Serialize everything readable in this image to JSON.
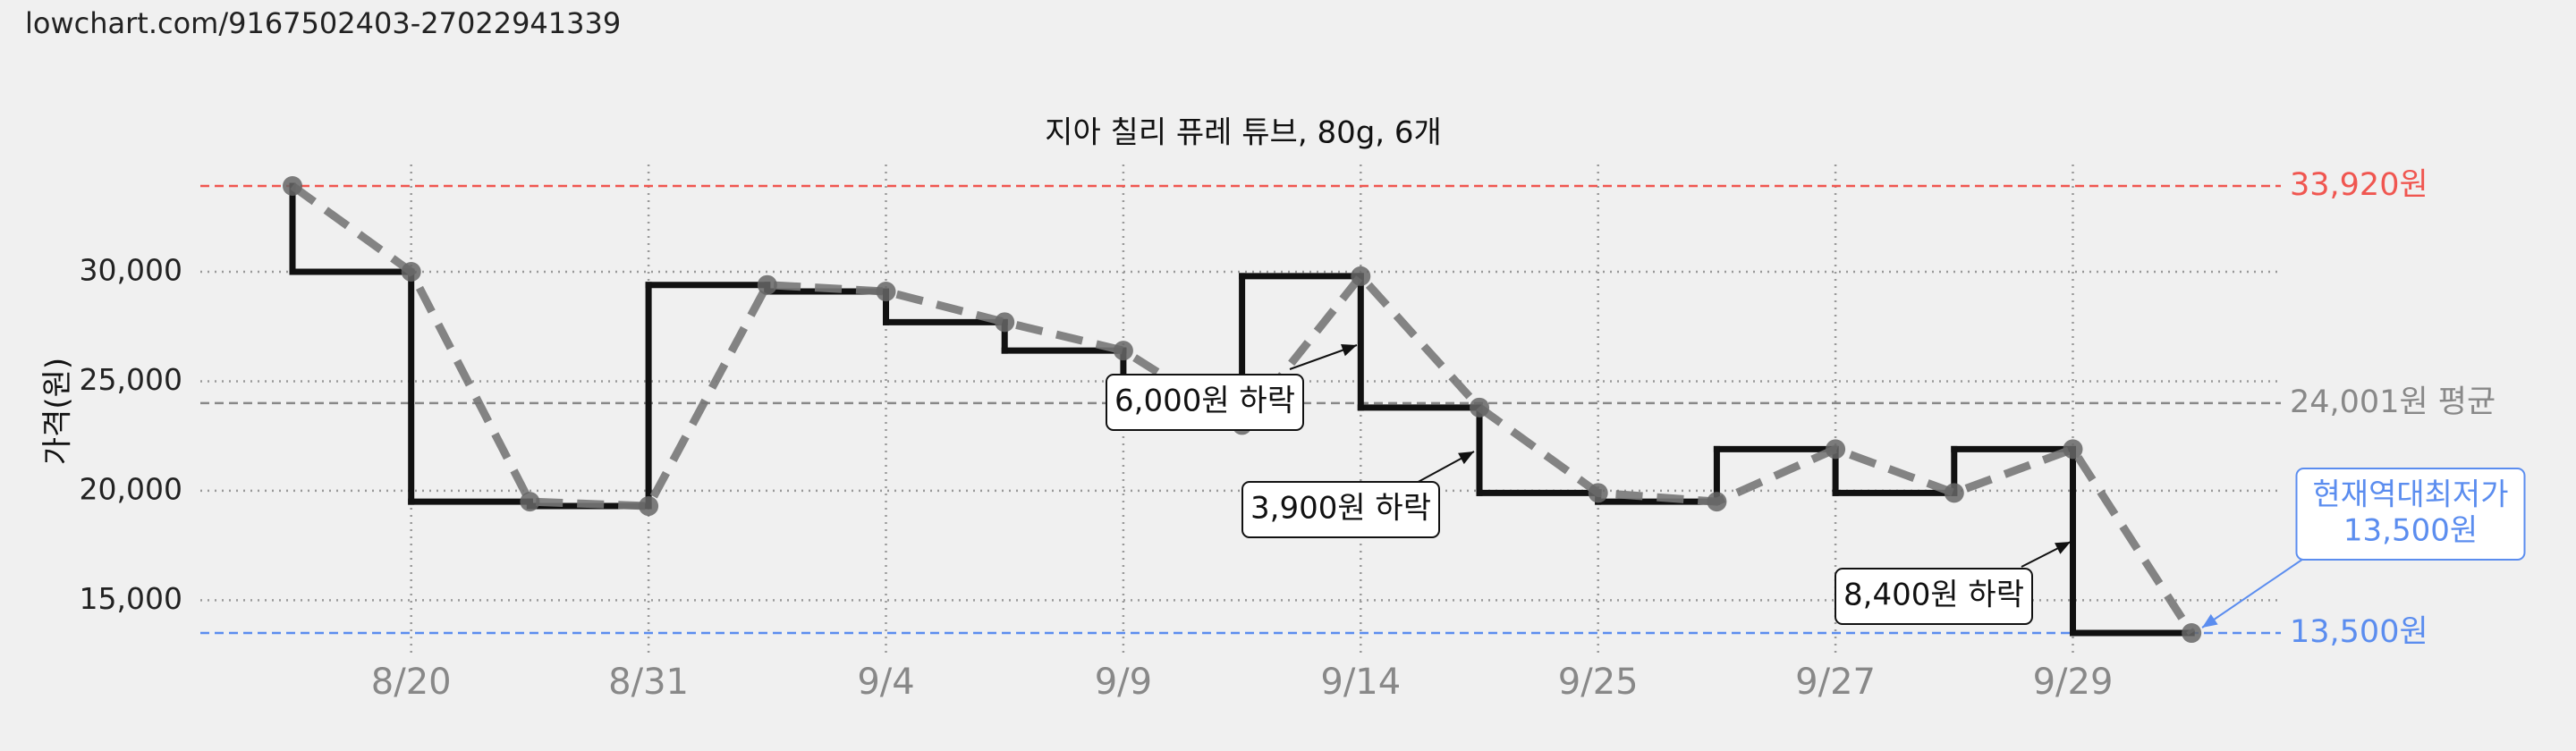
{
  "page_url": "lowchart.com/9167502403-27022941339",
  "chart_data": {
    "type": "step-line",
    "title": "지아 칠리 퓨레 튜브, 80g, 6개",
    "y_label": "가격(원)",
    "categories": [
      null,
      "8/20",
      null,
      "8/31",
      null,
      "9/4",
      null,
      "9/9",
      null,
      "9/14",
      null,
      "9/25",
      null,
      "9/27",
      null,
      "9/29",
      null
    ],
    "values": [
      33920,
      30000,
      19500,
      19300,
      29400,
      29100,
      27700,
      26400,
      23000,
      29800,
      23800,
      19900,
      19500,
      21900,
      19900,
      21900,
      13500
    ],
    "step_color": "#111111",
    "line_color": "#777777",
    "point_color": "#666666",
    "ylim": [
      12400,
      34900
    ],
    "yticks": [
      {
        "value": 15000,
        "label": "15,000"
      },
      {
        "value": 20000,
        "label": "20,000"
      },
      {
        "value": 25000,
        "label": "25,000"
      },
      {
        "value": 30000,
        "label": "30,000"
      }
    ],
    "grid": true,
    "reference_lines": [
      {
        "value": 33920,
        "label": "33,920원",
        "color": "#f05650"
      },
      {
        "value": 24001,
        "label": "24,001원 평균",
        "color": "#888888"
      },
      {
        "value": 13500,
        "label": "13,500원",
        "color": "#5b8def"
      }
    ],
    "annotations": [
      {
        "lines": [
          "6,000원 하락"
        ],
        "color": "#111111"
      },
      {
        "lines": [
          "3,900원 하락"
        ],
        "color": "#111111"
      },
      {
        "lines": [
          "8,400원 하락"
        ],
        "color": "#111111"
      },
      {
        "lines": [
          "현재역대최저가",
          "13,500원"
        ],
        "color": "#5b8def"
      }
    ]
  }
}
